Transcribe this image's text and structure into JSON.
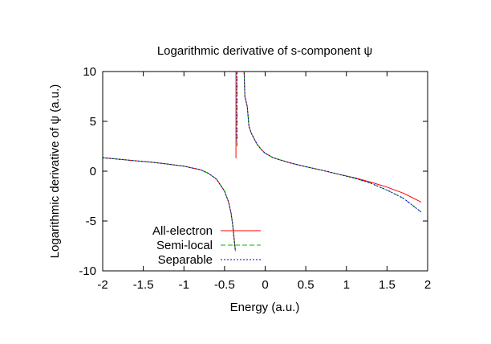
{
  "chart_data": {
    "type": "line",
    "title": "Logarithmic derivative of s-component ψ",
    "xlabel": "Energy (a.u.)",
    "ylabel": "Logarithmic derivative of ψ (a.u.)",
    "xlim": [
      -2,
      2
    ],
    "ylim": [
      -10,
      10
    ],
    "xticks": [
      -2,
      -1.5,
      -1,
      -0.5,
      0,
      0.5,
      1,
      1.5,
      2
    ],
    "xtick_labels": [
      "-2",
      "-1.5",
      "-1",
      "-0.5",
      "0",
      "0.5",
      "1",
      "1.5",
      "2"
    ],
    "yticks": [
      -10,
      -5,
      0,
      5,
      10
    ],
    "ytick_labels": [
      "-10",
      "-5",
      "0",
      "5",
      "10"
    ],
    "grid": false,
    "legend_position": "bottom-left",
    "series": [
      {
        "name": "All-electron",
        "color": "#ff0000",
        "dash": "solid",
        "segments": [
          [
            [
              -2.0,
              1.35
            ],
            [
              -1.8,
              1.2
            ],
            [
              -1.6,
              1.05
            ],
            [
              -1.4,
              0.9
            ],
            [
              -1.2,
              0.72
            ],
            [
              -1.0,
              0.5
            ],
            [
              -0.8,
              0.15
            ],
            [
              -0.7,
              -0.2
            ],
            [
              -0.6,
              -0.8
            ],
            [
              -0.5,
              -2.0
            ],
            [
              -0.45,
              -3.1
            ],
            [
              -0.42,
              -4.2
            ],
            [
              -0.4,
              -5.3
            ],
            [
              -0.38,
              -6.8
            ],
            [
              -0.37,
              -7.8
            ],
            [
              -0.365,
              -8.0
            ]
          ],
          [
            [
              -0.36,
              1.3
            ],
            [
              -0.36,
              10.2
            ]
          ],
          [
            [
              -0.26,
              10.2
            ],
            [
              -0.25,
              7.5
            ],
            [
              -0.22,
              6.5
            ],
            [
              -0.2,
              4.5
            ],
            [
              -0.17,
              3.8
            ],
            [
              -0.1,
              2.7
            ],
            [
              -0.05,
              2.2
            ],
            [
              0.0,
              1.8
            ],
            [
              0.1,
              1.35
            ],
            [
              0.3,
              0.85
            ],
            [
              0.5,
              0.45
            ],
            [
              0.7,
              0.1
            ],
            [
              0.9,
              -0.3
            ],
            [
              1.1,
              -0.65
            ],
            [
              1.3,
              -1.1
            ],
            [
              1.5,
              -1.6
            ],
            [
              1.7,
              -2.2
            ],
            [
              1.92,
              -3.1
            ]
          ]
        ]
      },
      {
        "name": "Semi-local",
        "color": "#00bb00",
        "dash": "6,3",
        "segments": [
          [
            [
              -2.0,
              1.35
            ],
            [
              -1.8,
              1.2
            ],
            [
              -1.6,
              1.05
            ],
            [
              -1.4,
              0.9
            ],
            [
              -1.2,
              0.72
            ],
            [
              -1.0,
              0.5
            ],
            [
              -0.8,
              0.15
            ],
            [
              -0.7,
              -0.2
            ],
            [
              -0.6,
              -0.8
            ],
            [
              -0.5,
              -2.0
            ],
            [
              -0.45,
              -3.1
            ],
            [
              -0.42,
              -4.2
            ],
            [
              -0.4,
              -5.4
            ],
            [
              -0.38,
              -7.0
            ],
            [
              -0.365,
              -8.0
            ]
          ],
          [
            [
              -0.345,
              10.2
            ],
            [
              -0.345,
              2.5
            ]
          ],
          [
            [
              -0.26,
              10.2
            ],
            [
              -0.25,
              7.5
            ],
            [
              -0.22,
              6.5
            ],
            [
              -0.2,
              4.5
            ],
            [
              -0.17,
              3.8
            ],
            [
              -0.1,
              2.7
            ],
            [
              -0.05,
              2.2
            ],
            [
              0.0,
              1.8
            ],
            [
              0.1,
              1.35
            ],
            [
              0.3,
              0.85
            ],
            [
              0.5,
              0.45
            ],
            [
              0.7,
              0.1
            ],
            [
              0.9,
              -0.3
            ],
            [
              1.1,
              -0.7
            ],
            [
              1.3,
              -1.2
            ],
            [
              1.5,
              -1.9
            ],
            [
              1.7,
              -2.7
            ],
            [
              1.92,
              -4.1
            ]
          ]
        ]
      },
      {
        "name": "Separable",
        "color": "#0000cc",
        "dash": "2,2",
        "segments": [
          [
            [
              -2.0,
              1.35
            ],
            [
              -1.8,
              1.2
            ],
            [
              -1.6,
              1.05
            ],
            [
              -1.4,
              0.9
            ],
            [
              -1.2,
              0.72
            ],
            [
              -1.0,
              0.5
            ],
            [
              -0.8,
              0.15
            ],
            [
              -0.7,
              -0.2
            ],
            [
              -0.6,
              -0.8
            ],
            [
              -0.5,
              -2.0
            ],
            [
              -0.45,
              -3.1
            ],
            [
              -0.42,
              -4.2
            ],
            [
              -0.4,
              -5.4
            ],
            [
              -0.38,
              -7.0
            ],
            [
              -0.365,
              -8.0
            ]
          ],
          [
            [
              -0.35,
              10.2
            ],
            [
              -0.35,
              3.0
            ]
          ],
          [
            [
              -0.26,
              10.2
            ],
            [
              -0.25,
              7.5
            ],
            [
              -0.22,
              6.5
            ],
            [
              -0.2,
              4.5
            ],
            [
              -0.17,
              3.8
            ],
            [
              -0.1,
              2.7
            ],
            [
              -0.05,
              2.2
            ],
            [
              0.0,
              1.8
            ],
            [
              0.1,
              1.35
            ],
            [
              0.3,
              0.85
            ],
            [
              0.5,
              0.45
            ],
            [
              0.7,
              0.1
            ],
            [
              0.9,
              -0.3
            ],
            [
              1.1,
              -0.7
            ],
            [
              1.3,
              -1.2
            ],
            [
              1.5,
              -1.9
            ],
            [
              1.7,
              -2.7
            ],
            [
              1.92,
              -4.1
            ]
          ]
        ]
      }
    ]
  }
}
